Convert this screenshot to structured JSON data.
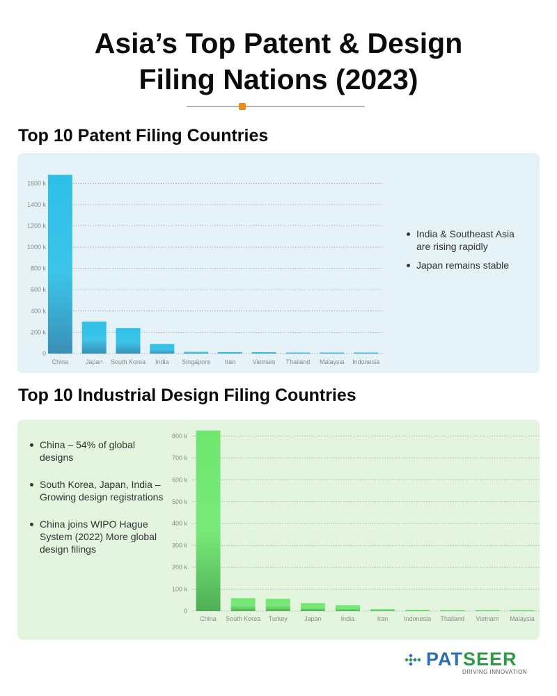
{
  "title_line1": "Asia’s Top Patent & Design",
  "title_line2": "Filing Nations (2023)",
  "accent_color": "#ef8a1a",
  "patent_section": {
    "heading": "Top 10 Patent Filing Countries",
    "notes": [
      "India & Southeast Asia are rising rapidly",
      "Japan remains stable"
    ]
  },
  "design_section": {
    "heading": "Top 10 Industrial Design Filing Countries",
    "notes": [
      "China – 54% of global designs",
      "South Korea, Japan, India – Growing design registrations",
      "China joins WIPO Hague System (2022) More global design filings"
    ]
  },
  "logo": {
    "name_part1": "PAT",
    "name_part2": "SEER",
    "tagline": "DRIVING INNOVATION"
  },
  "chart_data": [
    {
      "type": "bar",
      "title": "Top 10 Patent Filing Countries",
      "categories": [
        "China",
        "Japan",
        "South Korea",
        "India",
        "Singapore",
        "Iran",
        "Vietnam",
        "Thailand",
        "Malaysia",
        "Indonesia"
      ],
      "values": [
        1680000,
        300000,
        240000,
        90000,
        16000,
        14000,
        13000,
        9000,
        8000,
        6000
      ],
      "yticks": [
        0,
        200000,
        400000,
        600000,
        800000,
        1000000,
        1200000,
        1400000,
        1600000
      ],
      "ytick_labels": [
        "0",
        "200 k",
        "400 k",
        "600 k",
        "800 k",
        "1000 k",
        "1200 k",
        "1400 k",
        "1600 k"
      ],
      "ylim": [
        0,
        1700000
      ],
      "grid": true,
      "color": "#2bbbe3"
    },
    {
      "type": "bar",
      "title": "Top 10 Industrial Design Filing Countries",
      "categories": [
        "China",
        "South Korea",
        "Turkey",
        "Japan",
        "India",
        "Iran",
        "Indonesia",
        "Thailand",
        "Vietnam",
        "Malaysia"
      ],
      "values": [
        825000,
        59000,
        56000,
        36000,
        27000,
        9000,
        6000,
        5000,
        5000,
        4500
      ],
      "yticks": [
        0,
        100000,
        200000,
        300000,
        400000,
        500000,
        600000,
        700000,
        800000
      ],
      "ytick_labels": [
        "0",
        "100 k",
        "200 k",
        "300 k",
        "400 k",
        "500 k",
        "600 k",
        "700 k",
        "800 k"
      ],
      "ylim": [
        0,
        830000
      ],
      "grid": true,
      "color": "#6de06d"
    }
  ]
}
